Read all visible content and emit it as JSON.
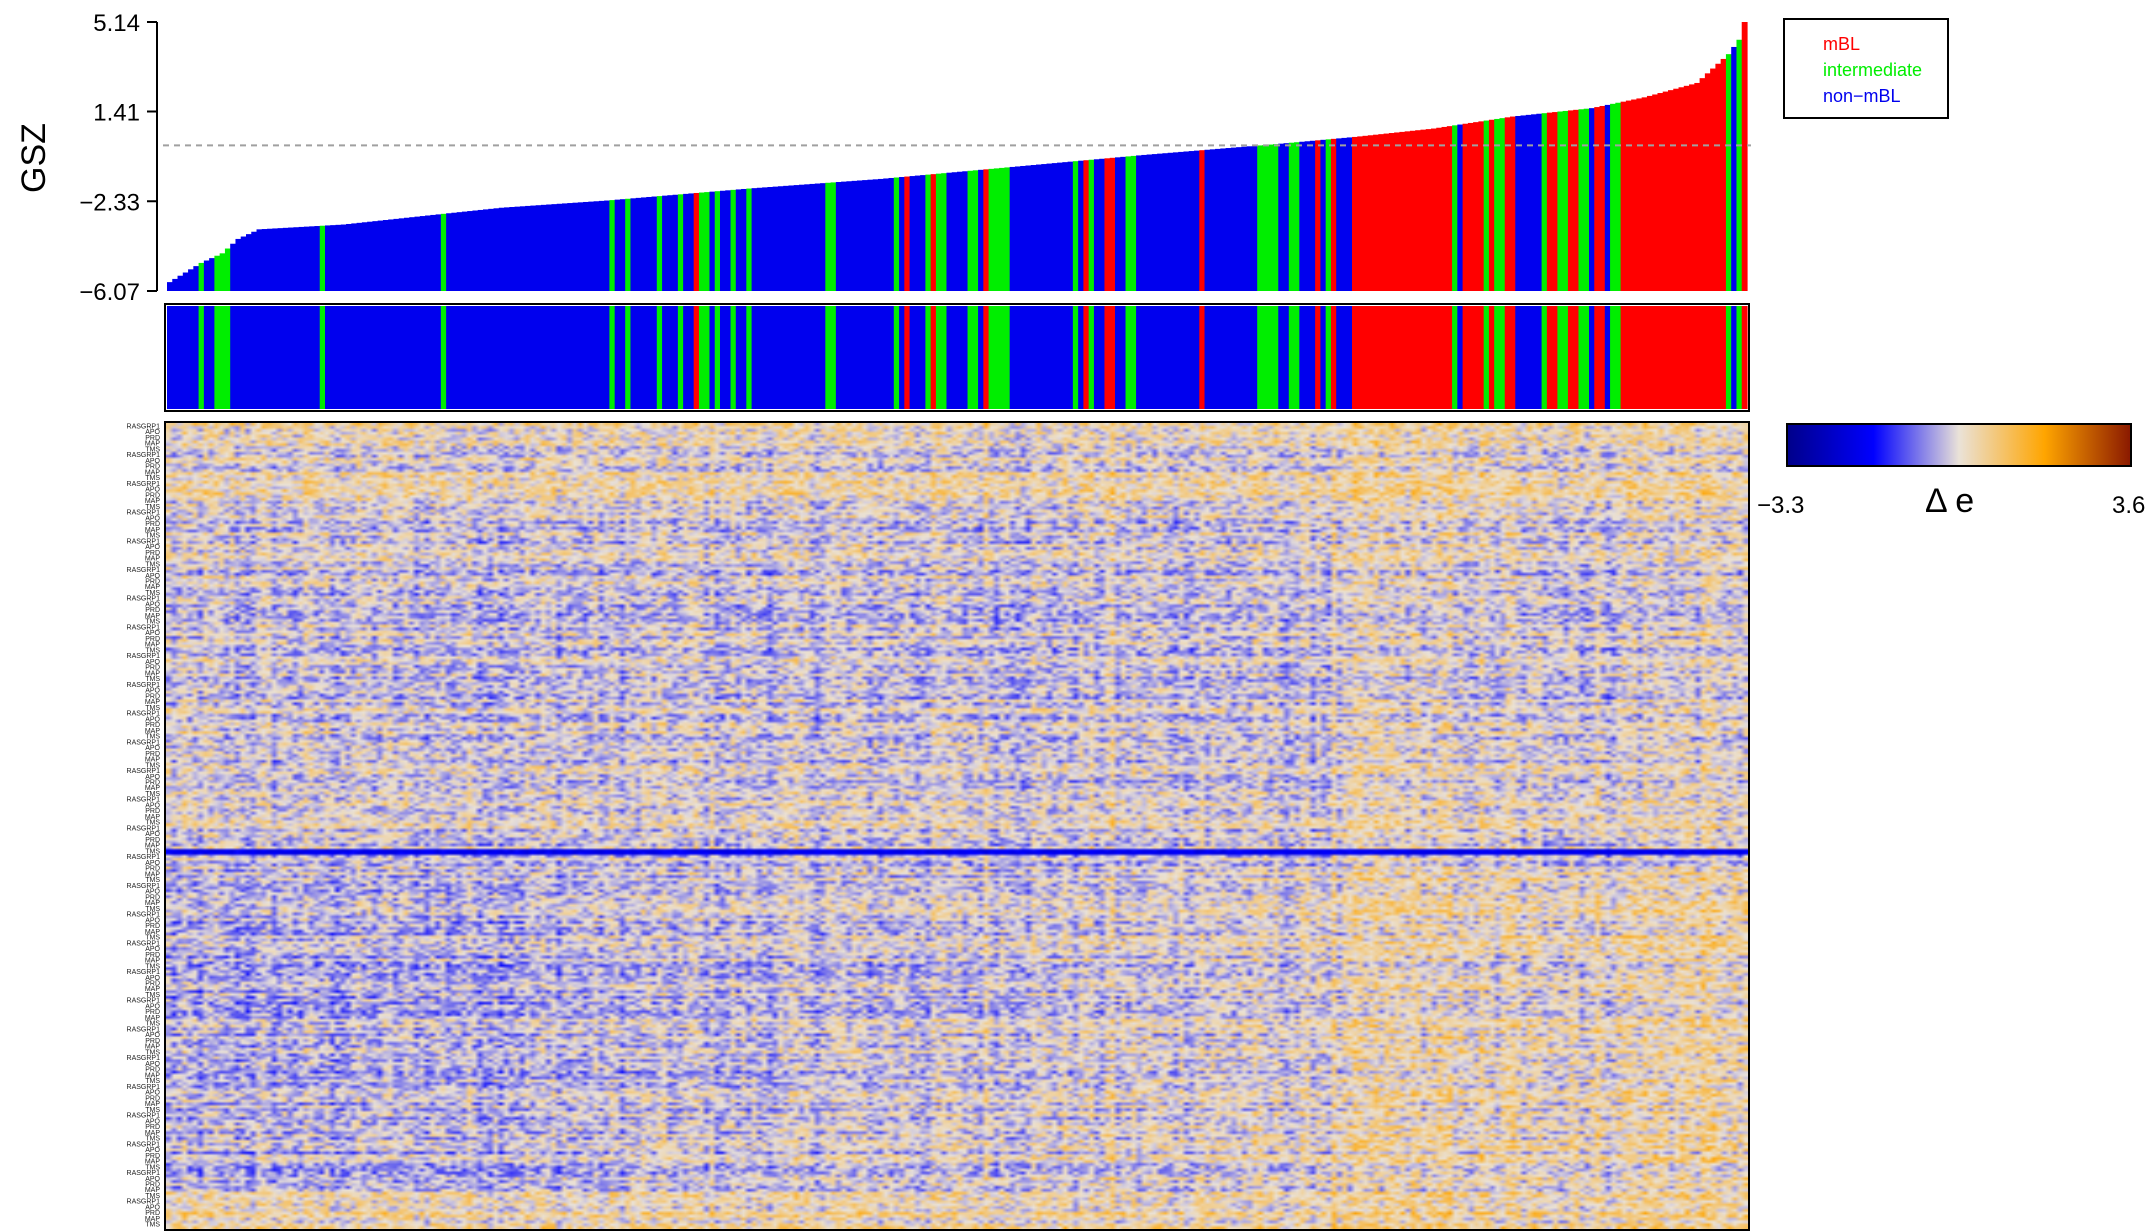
{
  "chart_data": {
    "type": "bar",
    "ylabel": "GSZ",
    "y_ticks": [
      "5.14",
      "1.41",
      "−2.33",
      "−6.07"
    ],
    "y_tick_values": [
      5.14,
      1.41,
      -2.33,
      -6.07
    ],
    "ylim": [
      -6.07,
      5.14
    ],
    "reference_line": 0.0,
    "n_samples": 300,
    "legend": {
      "placement": "top-right, outside plot",
      "entries": [
        {
          "label": "mBL",
          "color": "#ff0000"
        },
        {
          "label": "intermediate",
          "color": "#00ee00"
        },
        {
          "label": "non−mBL",
          "color": "#0000ee"
        }
      ]
    },
    "bars_sorted_ascending": true,
    "gsz_profile": [
      {
        "rank": 0,
        "value": -5.7
      },
      {
        "rank": 3,
        "value": -5.3
      },
      {
        "rank": 6,
        "value": -4.9
      },
      {
        "rank": 10,
        "value": -4.5
      },
      {
        "rank": 13,
        "value": -3.9
      },
      {
        "rank": 17,
        "value": -3.5
      },
      {
        "rank": 33,
        "value": -3.3
      },
      {
        "rank": 50,
        "value": -2.9
      },
      {
        "rank": 63,
        "value": -2.6
      },
      {
        "rank": 83,
        "value": -2.3
      },
      {
        "rank": 110,
        "value": -1.8
      },
      {
        "rank": 135,
        "value": -1.4
      },
      {
        "rank": 160,
        "value": -0.9
      },
      {
        "rank": 185,
        "value": -0.4
      },
      {
        "rank": 210,
        "value": 0.05
      },
      {
        "rank": 225,
        "value": 0.35
      },
      {
        "rank": 240,
        "value": 0.7
      },
      {
        "rank": 255,
        "value": 1.2
      },
      {
        "rank": 270,
        "value": 1.55
      },
      {
        "rank": 280,
        "value": 2.0
      },
      {
        "rank": 290,
        "value": 2.6
      },
      {
        "rank": 293,
        "value": 3.2
      },
      {
        "rank": 296,
        "value": 3.8
      },
      {
        "rank": 298,
        "value": 4.4
      },
      {
        "rank": 299,
        "value": 5.14
      }
    ],
    "class_runs": [
      {
        "start": 0,
        "end": 6,
        "class": "non−mBL"
      },
      {
        "start": 6,
        "end": 7,
        "class": "intermediate"
      },
      {
        "start": 7,
        "end": 9,
        "class": "non−mBL"
      },
      {
        "start": 9,
        "end": 12,
        "class": "intermediate"
      },
      {
        "start": 12,
        "end": 29,
        "class": "non−mBL"
      },
      {
        "start": 29,
        "end": 30,
        "class": "intermediate"
      },
      {
        "start": 30,
        "end": 52,
        "class": "non−mBL"
      },
      {
        "start": 52,
        "end": 53,
        "class": "intermediate"
      },
      {
        "start": 53,
        "end": 84,
        "class": "non−mBL"
      },
      {
        "start": 84,
        "end": 85,
        "class": "intermediate"
      },
      {
        "start": 85,
        "end": 87,
        "class": "non−mBL"
      },
      {
        "start": 87,
        "end": 88,
        "class": "intermediate"
      },
      {
        "start": 88,
        "end": 93,
        "class": "non−mBL"
      },
      {
        "start": 93,
        "end": 94,
        "class": "intermediate"
      },
      {
        "start": 94,
        "end": 97,
        "class": "non−mBL"
      },
      {
        "start": 97,
        "end": 98,
        "class": "intermediate"
      },
      {
        "start": 98,
        "end": 100,
        "class": "non−mBL"
      },
      {
        "start": 100,
        "end": 101,
        "class": "mBL"
      },
      {
        "start": 101,
        "end": 103,
        "class": "intermediate"
      },
      {
        "start": 103,
        "end": 104,
        "class": "non−mBL"
      },
      {
        "start": 104,
        "end": 105,
        "class": "intermediate"
      },
      {
        "start": 105,
        "end": 107,
        "class": "non−mBL"
      },
      {
        "start": 107,
        "end": 108,
        "class": "intermediate"
      },
      {
        "start": 108,
        "end": 110,
        "class": "non−mBL"
      },
      {
        "start": 110,
        "end": 111,
        "class": "intermediate"
      },
      {
        "start": 111,
        "end": 125,
        "class": "non−mBL"
      },
      {
        "start": 125,
        "end": 127,
        "class": "intermediate"
      },
      {
        "start": 127,
        "end": 138,
        "class": "non−mBL"
      },
      {
        "start": 138,
        "end": 139,
        "class": "intermediate"
      },
      {
        "start": 139,
        "end": 140,
        "class": "non−mBL"
      },
      {
        "start": 140,
        "end": 141,
        "class": "mBL"
      },
      {
        "start": 141,
        "end": 144,
        "class": "non−mBL"
      },
      {
        "start": 144,
        "end": 145,
        "class": "intermediate"
      },
      {
        "start": 145,
        "end": 146,
        "class": "mBL"
      },
      {
        "start": 146,
        "end": 148,
        "class": "intermediate"
      },
      {
        "start": 148,
        "end": 152,
        "class": "non−mBL"
      },
      {
        "start": 152,
        "end": 154,
        "class": "intermediate"
      },
      {
        "start": 154,
        "end": 155,
        "class": "non−mBL"
      },
      {
        "start": 155,
        "end": 156,
        "class": "mBL"
      },
      {
        "start": 156,
        "end": 160,
        "class": "intermediate"
      },
      {
        "start": 160,
        "end": 172,
        "class": "non−mBL"
      },
      {
        "start": 172,
        "end": 173,
        "class": "intermediate"
      },
      {
        "start": 173,
        "end": 174,
        "class": "non−mBL"
      },
      {
        "start": 174,
        "end": 175,
        "class": "mBL"
      },
      {
        "start": 175,
        "end": 176,
        "class": "intermediate"
      },
      {
        "start": 176,
        "end": 178,
        "class": "non−mBL"
      },
      {
        "start": 178,
        "end": 180,
        "class": "mBL"
      },
      {
        "start": 180,
        "end": 182,
        "class": "non−mBL"
      },
      {
        "start": 182,
        "end": 184,
        "class": "intermediate"
      },
      {
        "start": 184,
        "end": 196,
        "class": "non−mBL"
      },
      {
        "start": 196,
        "end": 197,
        "class": "mBL"
      },
      {
        "start": 197,
        "end": 207,
        "class": "non−mBL"
      },
      {
        "start": 207,
        "end": 211,
        "class": "intermediate"
      },
      {
        "start": 211,
        "end": 213,
        "class": "non−mBL"
      },
      {
        "start": 213,
        "end": 215,
        "class": "intermediate"
      },
      {
        "start": 215,
        "end": 218,
        "class": "non−mBL"
      },
      {
        "start": 218,
        "end": 219,
        "class": "mBL"
      },
      {
        "start": 219,
        "end": 220,
        "class": "non−mBL"
      },
      {
        "start": 220,
        "end": 221,
        "class": "intermediate"
      },
      {
        "start": 221,
        "end": 222,
        "class": "mBL"
      },
      {
        "start": 222,
        "end": 225,
        "class": "non−mBL"
      },
      {
        "start": 225,
        "end": 244,
        "class": "mBL"
      },
      {
        "start": 244,
        "end": 245,
        "class": "intermediate"
      },
      {
        "start": 245,
        "end": 246,
        "class": "non−mBL"
      },
      {
        "start": 246,
        "end": 250,
        "class": "mBL"
      },
      {
        "start": 250,
        "end": 251,
        "class": "intermediate"
      },
      {
        "start": 251,
        "end": 252,
        "class": "mBL"
      },
      {
        "start": 252,
        "end": 254,
        "class": "intermediate"
      },
      {
        "start": 254,
        "end": 256,
        "class": "mBL"
      },
      {
        "start": 256,
        "end": 261,
        "class": "non−mBL"
      },
      {
        "start": 261,
        "end": 262,
        "class": "intermediate"
      },
      {
        "start": 262,
        "end": 264,
        "class": "mBL"
      },
      {
        "start": 264,
        "end": 266,
        "class": "intermediate"
      },
      {
        "start": 266,
        "end": 268,
        "class": "mBL"
      },
      {
        "start": 268,
        "end": 270,
        "class": "intermediate"
      },
      {
        "start": 270,
        "end": 271,
        "class": "non−mBL"
      },
      {
        "start": 271,
        "end": 273,
        "class": "mBL"
      },
      {
        "start": 273,
        "end": 274,
        "class": "non−mBL"
      },
      {
        "start": 274,
        "end": 276,
        "class": "intermediate"
      },
      {
        "start": 276,
        "end": 296,
        "class": "mBL"
      },
      {
        "start": 296,
        "end": 297,
        "class": "intermediate"
      },
      {
        "start": 297,
        "end": 298,
        "class": "non−mBL"
      },
      {
        "start": 298,
        "end": 299,
        "class": "intermediate"
      },
      {
        "start": 299,
        "end": 300,
        "class": "mBL"
      }
    ],
    "heatmap": {
      "type": "heatmap",
      "n_rows": 280,
      "n_cols": 300,
      "row_labels_legible": false,
      "row_label_fragments": [
        "RASGRP1",
        "HSPA",
        "MAP",
        "POC",
        "APO",
        "NIP",
        "TMS",
        "RAC",
        "PRD",
        "IGKC"
      ],
      "colorbar": {
        "min_label": "−3.3",
        "max_label": "3.6",
        "min": -3.3,
        "max": 3.6,
        "label": "Δ e",
        "colors": [
          "#00008b",
          "#0000ff",
          "#eae2d8",
          "#ffa500",
          "#8b1a00"
        ]
      },
      "notable_features": [
        {
          "row_fraction": 0.53,
          "description": "strong blue horizontal band across all samples"
        },
        {
          "row_fraction": 0.97,
          "description": "orange band at bottom rows"
        }
      ]
    }
  }
}
